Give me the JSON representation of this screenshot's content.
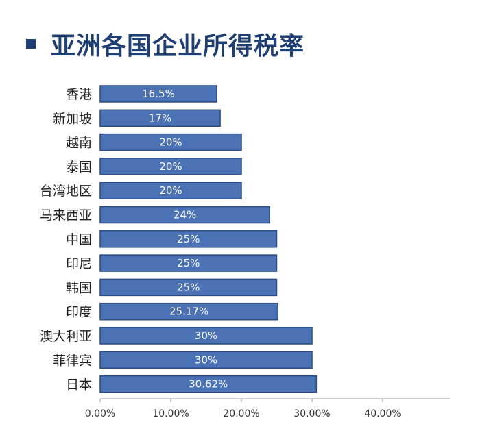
{
  "chart_data": {
    "type": "bar",
    "orientation": "horizontal",
    "title": "亚洲各国企业所得税率",
    "categories": [
      "香港",
      "新加坡",
      "越南",
      "泰国",
      "台湾地区",
      "马来西亚",
      "中国",
      "印尼",
      "韩国",
      "印度",
      "澳大利亚",
      "菲律宾",
      "日本"
    ],
    "values": [
      16.5,
      17,
      20,
      20,
      20,
      24,
      25,
      25,
      25,
      25.17,
      30,
      30,
      30.62
    ],
    "value_labels": [
      "16.5%",
      "17%",
      "20%",
      "20%",
      "20%",
      "24%",
      "25%",
      "25%",
      "25%",
      "25.17%",
      "30%",
      "30%",
      "30.62%"
    ],
    "x_ticks": [
      "0.00%",
      "10.00%",
      "20.00%",
      "30.00%",
      "40.00%"
    ],
    "xlim": [
      0,
      50
    ],
    "bar_color": "#4a72b5",
    "bar_edge_color": "#2b4a80",
    "title_color": "#1f3f73",
    "grid": false
  }
}
